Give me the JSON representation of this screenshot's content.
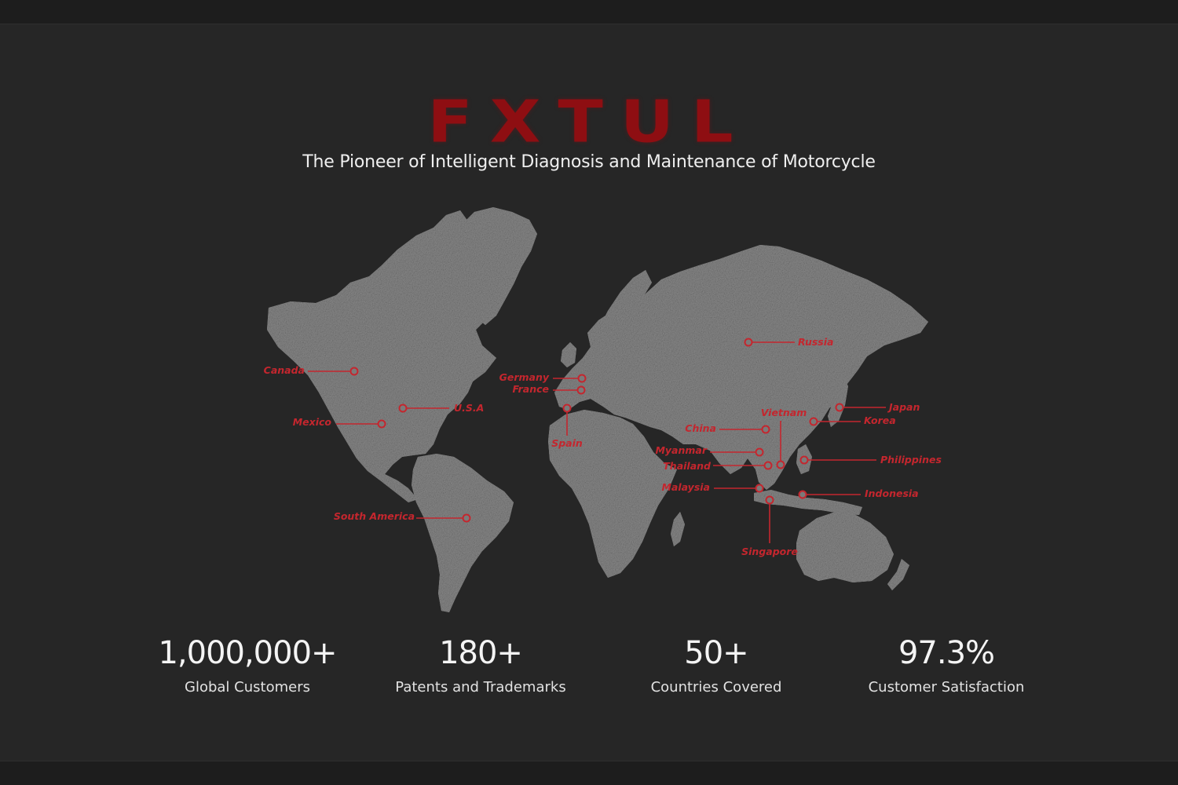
{
  "brand": {
    "logo_text": "FXTUL",
    "tagline": "The Pioneer of Intelligent Diagnosis and Maintenance of Motorcycle"
  },
  "colors": {
    "background": "#262626",
    "land": "#8a8a8a",
    "accent": "#c4262e",
    "text": "#f4f4f4"
  },
  "map": {
    "markers": [
      {
        "id": "canada",
        "label": "Canada"
      },
      {
        "id": "usa",
        "label": "U.S.A"
      },
      {
        "id": "mexico",
        "label": "Mexico"
      },
      {
        "id": "south-america",
        "label": "South America"
      },
      {
        "id": "germany",
        "label": "Germany"
      },
      {
        "id": "france",
        "label": "France"
      },
      {
        "id": "spain",
        "label": "Spain"
      },
      {
        "id": "russia",
        "label": "Russia"
      },
      {
        "id": "china",
        "label": "China"
      },
      {
        "id": "vietnam",
        "label": "Vietnam"
      },
      {
        "id": "myanmar",
        "label": "Myanmar"
      },
      {
        "id": "thailand",
        "label": "Thailand"
      },
      {
        "id": "malaysia",
        "label": "Malaysia"
      },
      {
        "id": "singapore",
        "label": "Singapore"
      },
      {
        "id": "japan",
        "label": "Japan"
      },
      {
        "id": "korea",
        "label": "Korea"
      },
      {
        "id": "philippines",
        "label": "Philippines"
      },
      {
        "id": "indonesia",
        "label": "Indonesia"
      }
    ]
  },
  "stats": [
    {
      "value": "1,000,000+",
      "label": "Global Customers"
    },
    {
      "value": "180+",
      "label": "Patents and Trademarks"
    },
    {
      "value": "50+",
      "label": "Countries Covered"
    },
    {
      "value": "97.3%",
      "label": "Customer Satisfaction"
    }
  ]
}
